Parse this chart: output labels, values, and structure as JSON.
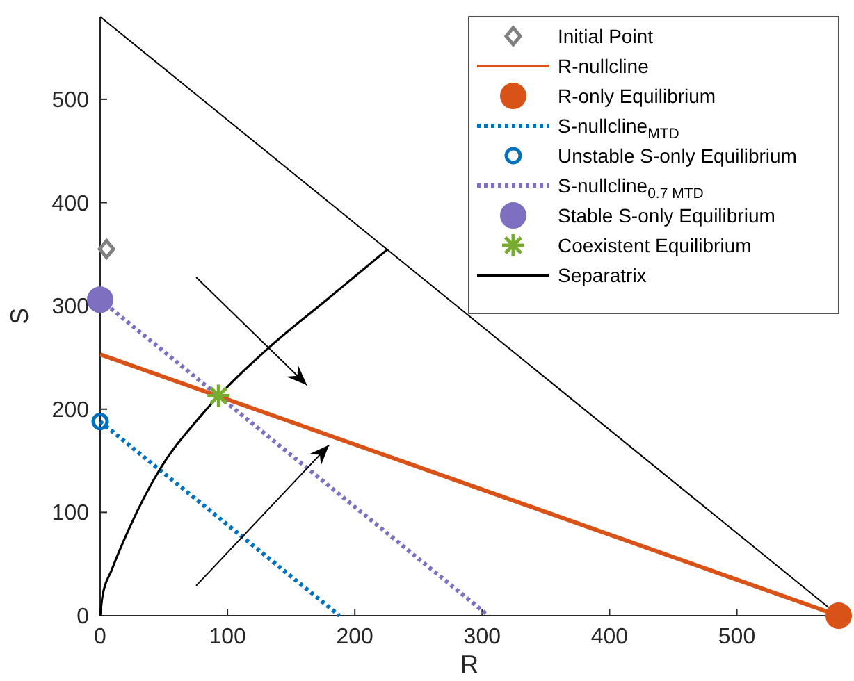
{
  "chart_data": {
    "type": "line",
    "xlabel": "R",
    "ylabel": "S",
    "xlim": [
      0,
      580
    ],
    "ylim": [
      0,
      580
    ],
    "xticks": [
      0,
      100,
      200,
      300,
      400,
      500
    ],
    "yticks": [
      0,
      100,
      200,
      300,
      400,
      500
    ],
    "grid": false,
    "legend": "top right",
    "series": [
      {
        "name": "Initial Point",
        "type": "scatter",
        "marker": "diamond",
        "color": "#808080",
        "x": [
          5
        ],
        "values": [
          355
        ]
      },
      {
        "name": "R-nullcline",
        "line_style": "solid",
        "color": "#d95319",
        "x": [
          0,
          580
        ],
        "values": [
          253,
          0
        ]
      },
      {
        "name": "R-only Equilibrium",
        "type": "scatter",
        "marker": "circle",
        "color": "#d95319",
        "x": [
          580
        ],
        "values": [
          0
        ]
      },
      {
        "name": "S-nullcline$_{MTD}$",
        "line_style": "dotted",
        "color": "#0072bd",
        "x": [
          0,
          188
        ],
        "values": [
          188,
          0
        ]
      },
      {
        "name": "Unstable S-only Equilibrium",
        "type": "scatter",
        "marker": "circle",
        "color": "#0072bd",
        "x": [
          0
        ],
        "values": [
          188
        ]
      },
      {
        "name": "S-nullcline$_{0.7 MTD}$",
        "line_style": "dotted",
        "color": "#7e6fc0",
        "x": [
          0,
          305
        ],
        "values": [
          306,
          0
        ]
      },
      {
        "name": "Stable S-only Equilibrium",
        "type": "scatter",
        "marker": "circle",
        "color": "#7e6fc0",
        "x": [
          0
        ],
        "values": [
          306
        ]
      },
      {
        "name": "Coexistent Equilibrium",
        "type": "scatter",
        "marker": "cross",
        "color": "#77ac30",
        "x": [
          93
        ],
        "values": [
          213
        ]
      },
      {
        "name": "Separatrix",
        "line_style": "solid",
        "color": "#000000",
        "x": [
          0,
          2,
          9,
          23,
          47,
          78,
          132,
          176,
          226
        ],
        "values": [
          0,
          20,
          44,
          85,
          142,
          192,
          259,
          304,
          355
        ]
      },
      {
        "line_style": "solid",
        "color": "#000000",
        "x": [
          0,
          580
        ],
        "values": [
          580,
          0
        ]
      }
    ]
  }
}
